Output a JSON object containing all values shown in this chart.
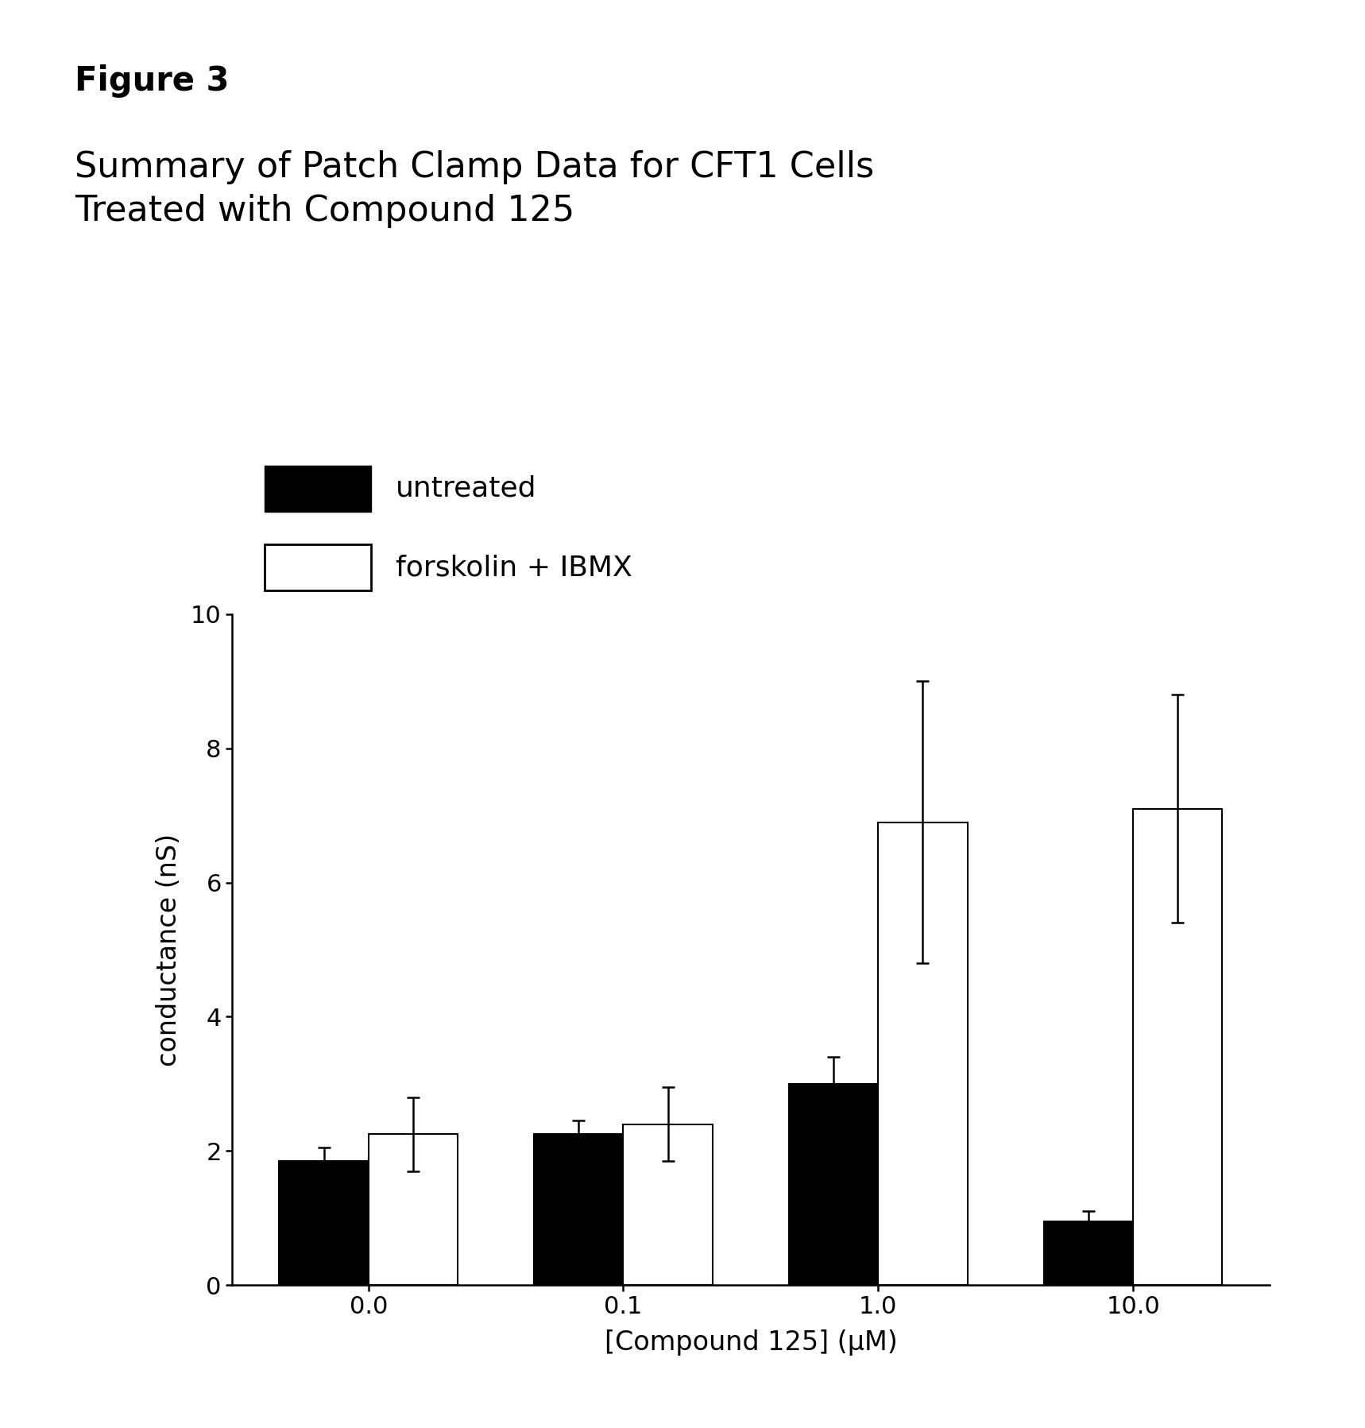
{
  "title_bold": "Figure 3",
  "subtitle": "Summary of Patch Clamp Data for CFT1 Cells\nTreated with Compound 125",
  "categories": [
    "0.0",
    "0.1",
    "1.0",
    "10.0"
  ],
  "untreated_values": [
    1.85,
    2.25,
    3.0,
    0.95
  ],
  "untreated_errors": [
    0.2,
    0.2,
    0.4,
    0.15
  ],
  "forskolin_values": [
    2.25,
    2.4,
    6.9,
    7.1
  ],
  "forskolin_errors": [
    0.55,
    0.55,
    2.1,
    1.7
  ],
  "ylabel": "conductance (nS)",
  "xlabel": "[Compound 125] (μM)",
  "ylim": [
    0,
    10
  ],
  "yticks": [
    0,
    2,
    4,
    6,
    8,
    10
  ],
  "legend_untreated": "untreated",
  "legend_forskolin": "forskolin + IBMX",
  "bar_width": 0.35,
  "background_color": "#ffffff",
  "untreated_color": "#000000",
  "forskolin_color": "#ffffff",
  "forskolin_edgecolor": "#000000",
  "title_fontsize": 30,
  "subtitle_fontsize": 32,
  "label_fontsize": 24,
  "tick_fontsize": 22,
  "legend_fontsize": 26
}
